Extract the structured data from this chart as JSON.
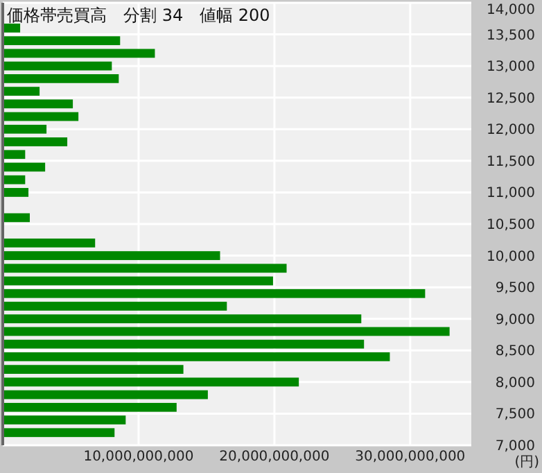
{
  "chart_data": {
    "type": "bar",
    "orientation": "horizontal",
    "title": "価格帯売買高　分割 34　値幅 200",
    "x": [
      13600,
      13400,
      13200,
      13000,
      12800,
      12600,
      12400,
      12200,
      12000,
      11800,
      11600,
      11400,
      11200,
      11000,
      10800,
      10600,
      10400,
      10200,
      10000,
      9800,
      9600,
      9400,
      9200,
      9000,
      8800,
      8600,
      8400,
      8200,
      8000,
      7800,
      7600,
      7400,
      7200
    ],
    "values": [
      1280000000,
      8640000000,
      11200000000,
      8030000000,
      8540000000,
      2710000000,
      5160000000,
      5570000000,
      3220000000,
      4750000000,
      1650000000,
      3120000000,
      1650000000,
      1890000000,
      100000000,
      1990000000,
      100000000,
      6800000000,
      16000000000,
      20900000000,
      19900000000,
      31100000000,
      16500000000,
      26400000000,
      32900000000,
      26600000000,
      28500000000,
      13300000000,
      21800000000,
      15100000000,
      12800000000,
      9050000000,
      8230000000
    ],
    "color": "#008800",
    "xlim": [
      0,
      34500000000
    ],
    "xticks": [
      {
        "value": 10000000000,
        "label": "10,000,000,000"
      },
      {
        "value": 20000000000,
        "label": "20,000,000,000"
      },
      {
        "value": 30000000000,
        "label": "30,000,000,000"
      }
    ],
    "ylim": [
      7000,
      14000
    ],
    "yticks": [
      {
        "value": 7000,
        "label": "7,000"
      },
      {
        "value": 7500,
        "label": "7,500"
      },
      {
        "value": 8000,
        "label": "8,000"
      },
      {
        "value": 8500,
        "label": "8,500"
      },
      {
        "value": 9000,
        "label": "9,000"
      },
      {
        "value": 9500,
        "label": "9,500"
      },
      {
        "value": 10000,
        "label": "10,000"
      },
      {
        "value": 10500,
        "label": "10,500"
      },
      {
        "value": 11000,
        "label": "11,000"
      },
      {
        "value": 11500,
        "label": "11,500"
      },
      {
        "value": 12000,
        "label": "12,000"
      },
      {
        "value": 12500,
        "label": "12,500"
      },
      {
        "value": 13000,
        "label": "13,000"
      },
      {
        "value": 13500,
        "label": "13,500"
      },
      {
        "value": 14000,
        "label": "14,000"
      }
    ],
    "annotations": [
      "(円)"
    ],
    "grid": true
  }
}
